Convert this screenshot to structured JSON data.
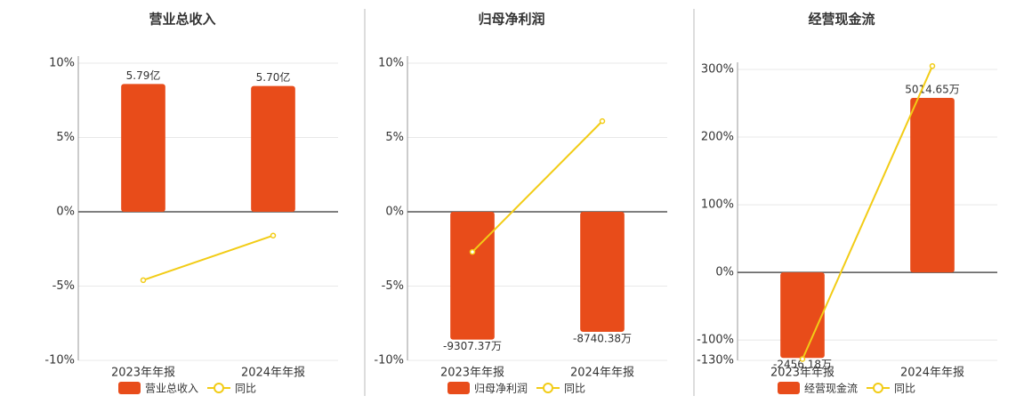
{
  "chart_data": [
    {
      "type": "bar",
      "title": "营业总收入",
      "categories": [
        "2023年年报",
        "2024年年报"
      ],
      "series": [
        {
          "name": "营业总收入",
          "type": "bar",
          "color": "#e84c1a",
          "values": [
            5.79,
            5.7
          ],
          "value_labels": [
            "5.79亿",
            "5.70亿"
          ]
        },
        {
          "name": "同比",
          "type": "line",
          "color": "#f2cc16",
          "values": [
            -4.6,
            -1.6
          ]
        }
      ],
      "ylim": [
        -10,
        10
      ],
      "yticks": [
        {
          "value": -10,
          "label": "-10%"
        },
        {
          "value": -5,
          "label": "-5%"
        },
        {
          "value": 0,
          "label": "0%"
        },
        {
          "value": 5,
          "label": "5%"
        },
        {
          "value": 10,
          "label": "10%"
        }
      ],
      "grid": true
    },
    {
      "type": "bar",
      "title": "归母净利润",
      "categories": [
        "2023年年报",
        "2024年年报"
      ],
      "series": [
        {
          "name": "归母净利润",
          "type": "bar",
          "color": "#e84c1a",
          "values": [
            -9307.37,
            -8740.38
          ],
          "value_labels": [
            "-9307.37万",
            "-8740.38万"
          ]
        },
        {
          "name": "同比",
          "type": "line",
          "color": "#f2cc16",
          "values": [
            -2.7,
            6.1
          ]
        }
      ],
      "ylim": [
        -10,
        10
      ],
      "yticks": [
        {
          "value": -10,
          "label": "-10%"
        },
        {
          "value": -5,
          "label": "-5%"
        },
        {
          "value": 0,
          "label": "0%"
        },
        {
          "value": 5,
          "label": "5%"
        },
        {
          "value": 10,
          "label": "10%"
        }
      ],
      "grid": true
    },
    {
      "type": "bar",
      "title": "经营现金流",
      "categories": [
        "2023年年报",
        "2024年年报"
      ],
      "series": [
        {
          "name": "经营现金流",
          "type": "bar",
          "color": "#e84c1a",
          "values": [
            -2456.18,
            5014.65
          ],
          "value_labels": [
            "-2456.18万",
            "5014.65万"
          ]
        },
        {
          "name": "同比",
          "type": "line",
          "color": "#f2cc16",
          "values": [
            -128,
            305
          ]
        }
      ],
      "ylim": [
        -130,
        300
      ],
      "yticks": [
        {
          "value": -130,
          "label": "-130%"
        },
        {
          "value": -100,
          "label": "-100%"
        },
        {
          "value": 0,
          "label": "0%"
        },
        {
          "value": 100,
          "label": "100%"
        },
        {
          "value": 200,
          "label": "200%"
        },
        {
          "value": 300,
          "label": "300%"
        }
      ],
      "grid": true
    }
  ]
}
